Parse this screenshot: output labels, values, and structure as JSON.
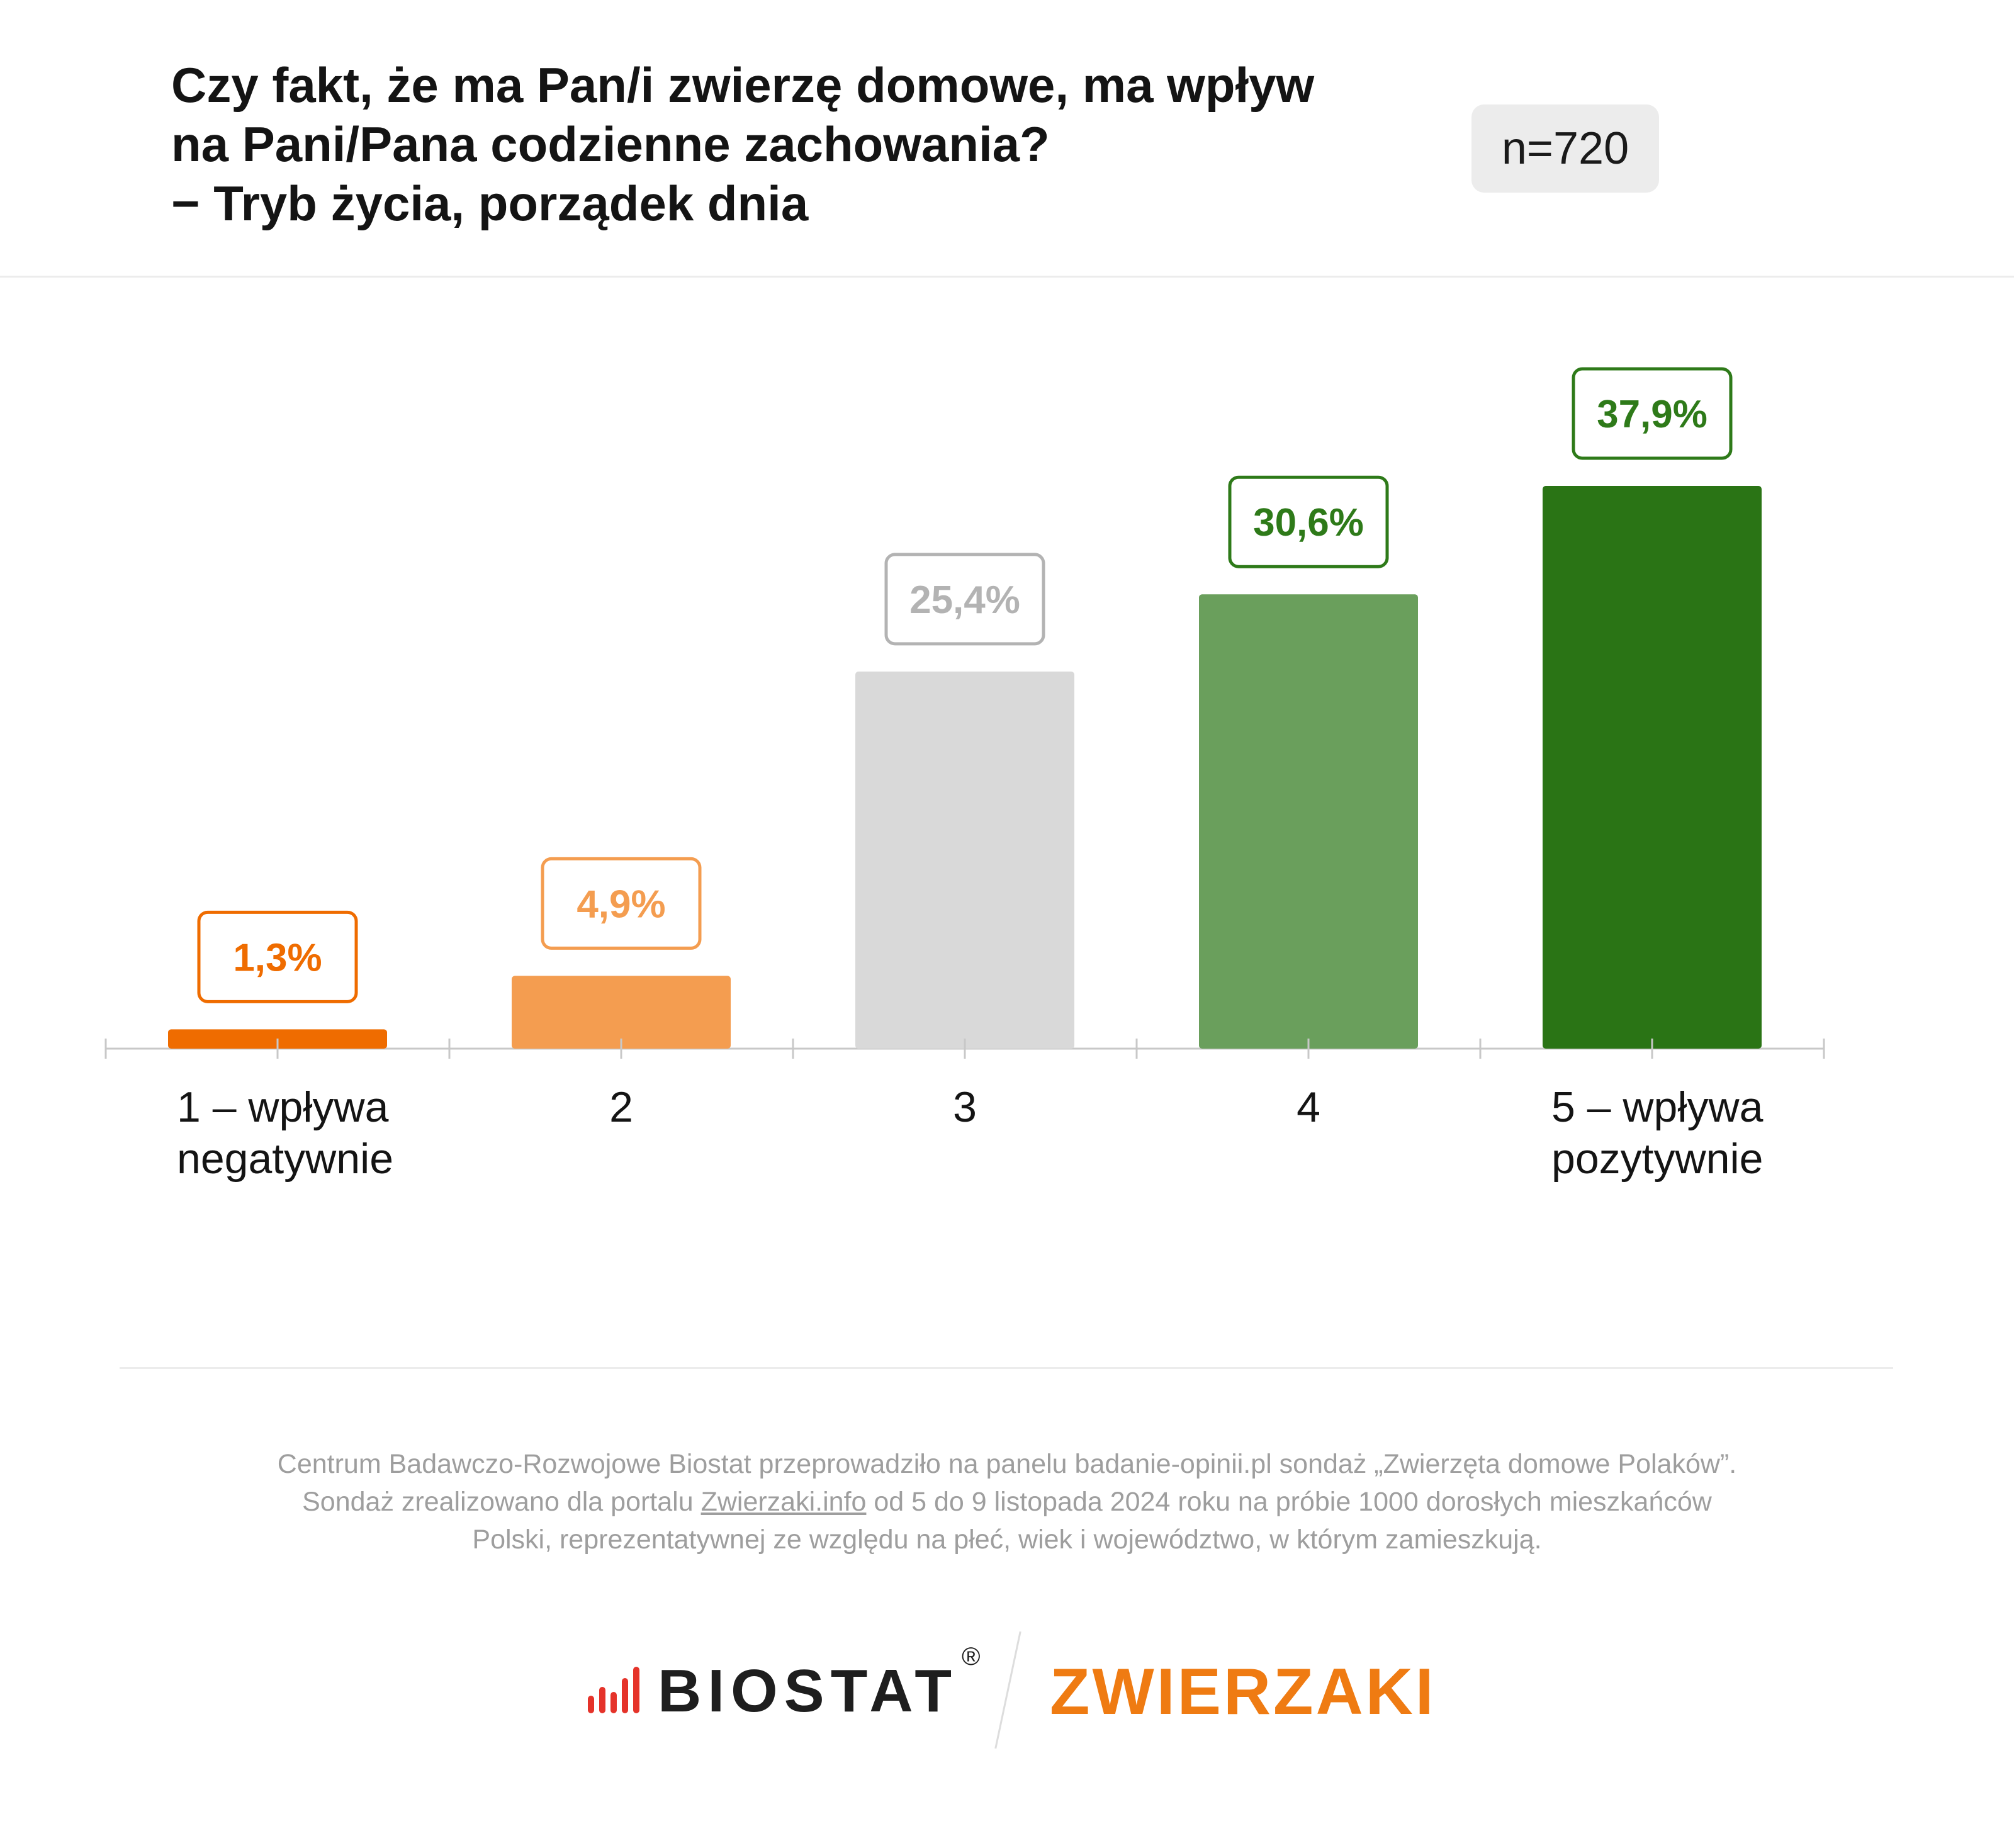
{
  "header": {
    "title_lines": [
      "Czy fakt, że ma Pan/i zwierzę domowe, ma wpływ",
      "na Pani/Pana codzienne zachowania?",
      "− Tryb życia, porządek dnia"
    ],
    "sample_size": "n=720"
  },
  "chart_data": {
    "type": "bar",
    "title": "Czy fakt, że ma Pan/i zwierzę domowe, ma wpływ na Pani/Pana codzienne zachowania? − Tryb życia, porządek dnia",
    "categories": [
      "1 – wpływa negatywnie",
      "2",
      "3",
      "4",
      "5 – wpływa pozytywnie"
    ],
    "category_lines": [
      [
        "1 – wpływa",
        "negatywnie"
      ],
      [
        "2"
      ],
      [
        "3"
      ],
      [
        "4"
      ],
      [
        "5 – wpływa",
        "pozytywnie"
      ]
    ],
    "values": [
      1.3,
      4.9,
      25.4,
      30.6,
      37.9
    ],
    "value_labels": [
      "1,3%",
      "4,9%",
      "25,4%",
      "30,6%",
      "37,9%"
    ],
    "bar_colors": [
      "#ef6c00",
      "#f49d50",
      "#d9d9d9",
      "#6a9f5c",
      "#2a7415"
    ],
    "label_colors": [
      "#ef6c00",
      "#f49d50",
      "#b3b3b3",
      "#2e7a19",
      "#2e7a19"
    ],
    "ylim": [
      0,
      40
    ],
    "grid": false,
    "legend": "none"
  },
  "footer": {
    "note_line1": "Centrum Badawczo-Rozwojowe Biostat przeprowadziło na panelu badanie-opinii.pl sondaż „Zwierzęta domowe Polaków”.",
    "note_line2_a": "Sondaż zrealizowano dla portalu ",
    "note_line2_link": "Zwierzaki.info",
    "note_line2_b": " od 5 do 9 listopada 2024 roku na próbie 1000 dorosłych mieszkańców",
    "note_line3": "Polski, reprezentatywnej ze względu na płeć, wiek i województwo, w którym zamieszkują.",
    "logo_biostat": "BIOSTAT",
    "logo_zwierzaki": "ZWIERZAKI",
    "biostat_icon": "signal-bars-icon",
    "registered_mark": "®"
  }
}
